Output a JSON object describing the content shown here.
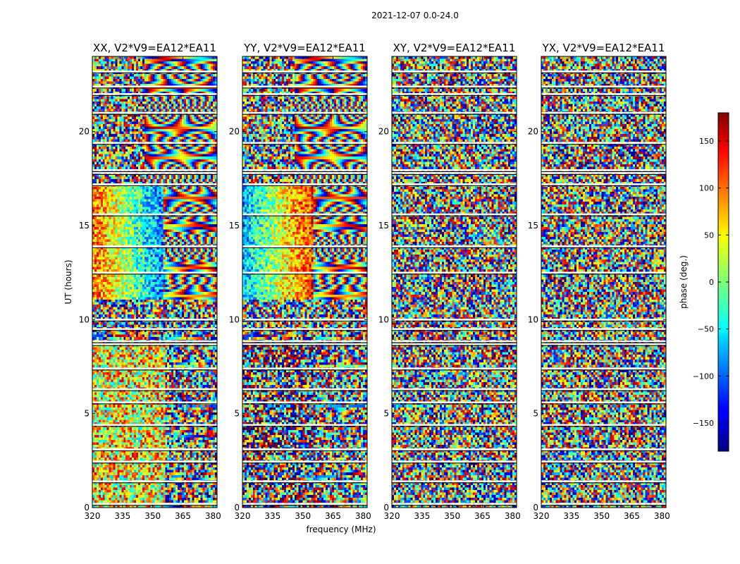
{
  "figure": {
    "suptitle": "2021-12-07 0.0-24.0",
    "xlabel": "frequency (MHz)",
    "ylabel": "UT (hours)"
  },
  "chart_data": {
    "type": "heatmap",
    "colormap": "jet",
    "x_range": [
      320,
      382
    ],
    "y_range": [
      0,
      24
    ],
    "x_ticks": [
      320,
      335,
      350,
      365,
      380
    ],
    "y_ticks": [
      0,
      5,
      10,
      15,
      20
    ],
    "panels": [
      {
        "title": "XX, V2*V9=EA12*EA11",
        "polarization": "XX"
      },
      {
        "title": "YY, V2*V9=EA12*EA11",
        "polarization": "YY"
      },
      {
        "title": "XY, V2*V9=EA12*EA11",
        "polarization": "XY"
      },
      {
        "title": "YX, V2*V9=EA12*EA11",
        "polarization": "YX"
      }
    ],
    "colorbar": {
      "label": "phase (deg.)",
      "range": [
        -180,
        180
      ],
      "ticks": [
        150,
        100,
        50,
        0,
        -50,
        -100,
        -150
      ]
    },
    "flagged_gaps_hours": [
      0.2,
      1.4,
      2.45,
      3.1,
      4.4,
      5.6,
      6.3,
      7.4,
      8.7,
      8.85,
      9.5,
      10.0,
      12.5,
      13.9,
      15.6,
      17.2,
      17.8,
      17.95,
      19.4,
      21.0,
      22.0,
      22.4,
      23.2
    ]
  }
}
